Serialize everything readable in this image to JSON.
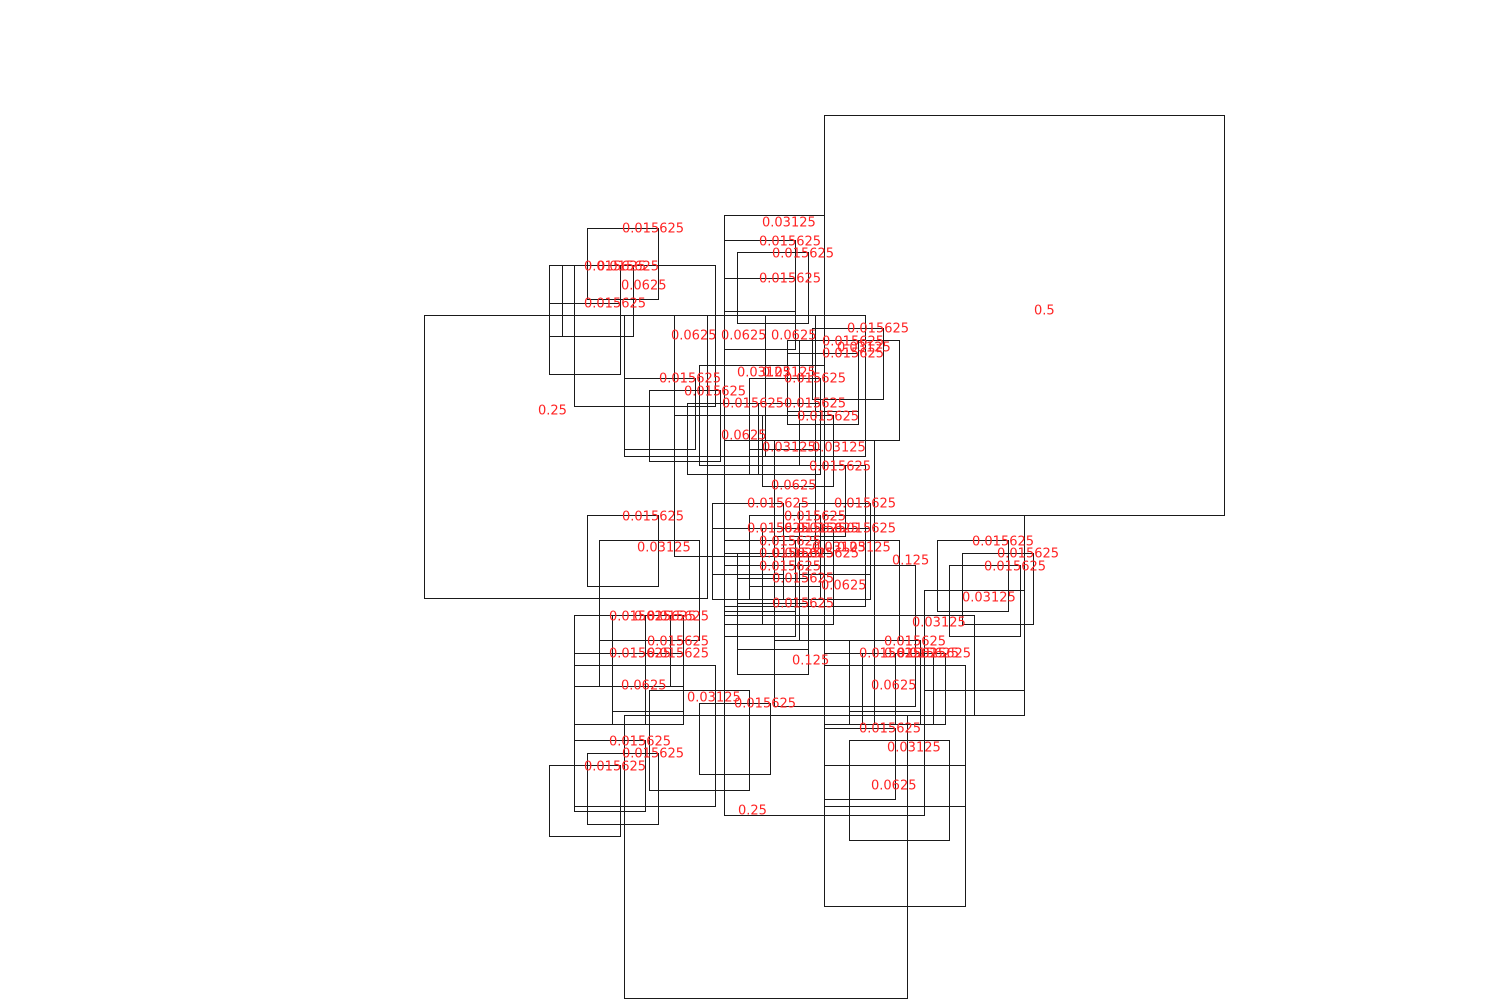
{
  "chart_data": {
    "type": "diagram",
    "units": "area of a square",
    "squares": [
      {
        "label": "0.5",
        "area": 0.5
      },
      {
        "label": "0.25",
        "area": 0.25
      },
      {
        "label": "0.25",
        "area": 0.25
      },
      {
        "label": "0.125",
        "area": 0.125
      },
      {
        "label": "0.125",
        "area": 0.125
      },
      {
        "label": "0.0625",
        "area": 0.0625
      },
      {
        "label": "0.0625",
        "area": 0.0625
      },
      {
        "label": "0.0625",
        "area": 0.0625
      },
      {
        "label": "0.0625",
        "area": 0.0625
      },
      {
        "label": "0.0625",
        "area": 0.0625
      },
      {
        "label": "0.0625",
        "area": 0.0625
      },
      {
        "label": "0.0625",
        "area": 0.0625
      },
      {
        "label": "0.0625",
        "area": 0.0625
      },
      {
        "label": "0.0625",
        "area": 0.0625
      },
      {
        "label": "0.0625",
        "area": 0.0625
      },
      {
        "label": "0.03125",
        "area": 0.03125
      },
      {
        "label": "0.03125",
        "area": 0.03125
      },
      {
        "label": "0.03125",
        "area": 0.03125
      },
      {
        "label": "0.03125",
        "area": 0.03125
      },
      {
        "label": "0.03125",
        "area": 0.03125
      },
      {
        "label": "0.03125",
        "area": 0.03125
      },
      {
        "label": "0.03125",
        "area": 0.03125
      },
      {
        "label": "0.03125",
        "area": 0.03125
      },
      {
        "label": "0.03125",
        "area": 0.03125
      },
      {
        "label": "0.03125",
        "area": 0.03125
      },
      {
        "label": "0.03125",
        "area": 0.03125
      },
      {
        "label": "0.03125",
        "area": 0.03125
      },
      {
        "label": "0.03125",
        "area": 0.03125
      },
      {
        "label": "0.015625",
        "area": 0.015625
      },
      {
        "label": "0.015625",
        "area": 0.015625
      },
      {
        "label": "0.015625",
        "area": 0.015625
      },
      {
        "label": "0.015625",
        "area": 0.015625
      },
      {
        "label": "0.015625",
        "area": 0.015625
      },
      {
        "label": "0.015625",
        "area": 0.015625
      },
      {
        "label": "0.015625",
        "area": 0.015625
      },
      {
        "label": "0.015625",
        "area": 0.015625
      },
      {
        "label": "0.015625",
        "area": 0.015625
      },
      {
        "label": "0.015625",
        "area": 0.015625
      },
      {
        "label": "0.015625",
        "area": 0.015625
      },
      {
        "label": "0.015625",
        "area": 0.015625
      },
      {
        "label": "0.015625",
        "area": 0.015625
      },
      {
        "label": "0.015625",
        "area": 0.015625
      },
      {
        "label": "0.015625",
        "area": 0.015625
      },
      {
        "label": "0.015625",
        "area": 0.015625
      },
      {
        "label": "0.015625",
        "area": 0.015625
      },
      {
        "label": "0.015625",
        "area": 0.015625
      },
      {
        "label": "0.015625",
        "area": 0.015625
      },
      {
        "label": "0.015625",
        "area": 0.015625
      },
      {
        "label": "0.015625",
        "area": 0.015625
      },
      {
        "label": "0.015625",
        "area": 0.015625
      },
      {
        "label": "0.015625",
        "area": 0.015625
      },
      {
        "label": "0.015625",
        "area": 0.015625
      },
      {
        "label": "0.015625",
        "area": 0.015625
      },
      {
        "label": "0.015625",
        "area": 0.015625
      },
      {
        "label": "0.015625",
        "area": 0.015625
      },
      {
        "label": "0.015625",
        "area": 0.015625
      },
      {
        "label": "0.015625",
        "area": 0.015625
      },
      {
        "label": "0.015625",
        "area": 0.015625
      },
      {
        "label": "0.015625",
        "area": 0.015625
      },
      {
        "label": "0.015625",
        "area": 0.015625
      },
      {
        "label": "0.015625",
        "area": 0.015625
      },
      {
        "label": "0.015625",
        "area": 0.015625
      },
      {
        "label": "0.015625",
        "area": 0.015625
      },
      {
        "label": "0.015625",
        "area": 0.015625
      },
      {
        "label": "0.015625",
        "area": 0.015625
      },
      {
        "label": "0.015625",
        "area": 0.015625
      },
      {
        "label": "0.015625",
        "area": 0.015625
      },
      {
        "label": "0.015625",
        "area": 0.015625
      },
      {
        "label": "0.015625",
        "area": 0.015625
      },
      {
        "label": "0.015625",
        "area": 0.015625
      },
      {
        "label": "0.015625",
        "area": 0.015625
      },
      {
        "label": "0.015625",
        "area": 0.015625
      },
      {
        "label": "0.015625",
        "area": 0.015625
      },
      {
        "label": "0.015625",
        "area": 0.015625
      },
      {
        "label": "0.015625",
        "area": 0.015625
      },
      {
        "label": "0.015625",
        "area": 0.015625
      },
      {
        "label": "0.015625",
        "area": 0.015625
      },
      {
        "label": "0.015625",
        "area": 0.015625
      },
      {
        "label": "0.015625",
        "area": 0.015625
      },
      {
        "label": "0.015625",
        "area": 0.015625
      },
      {
        "label": "0.015625",
        "area": 0.015625
      },
      {
        "label": "0.015625",
        "area": 0.015625
      },
      {
        "label": "0.015625",
        "area": 0.015625
      },
      {
        "label": "0.015625",
        "area": 0.015625
      },
      {
        "label": "0.015625",
        "area": 0.015625
      }
    ],
    "colors": {
      "outline": "#1a1a1a",
      "label": "#ff2222",
      "background": "#ffffff"
    }
  }
}
